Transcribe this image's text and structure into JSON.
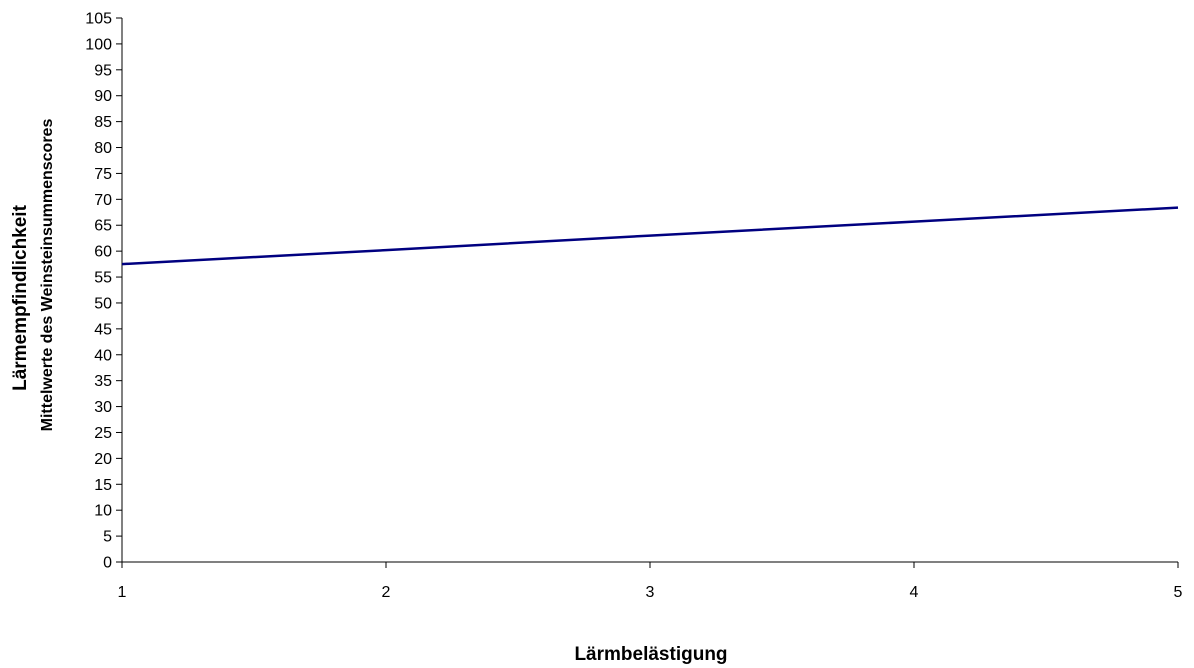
{
  "chart_data": {
    "type": "line",
    "title": "",
    "xlabel": "Lärmbelästigung",
    "ylabel": "Lärmempfindlichkeit",
    "ylabel_sub": "Mittelwerte des Weinsteinsummenscores",
    "xlim": [
      1,
      5
    ],
    "ylim": [
      0,
      105
    ],
    "x_ticks": [
      1,
      2,
      3,
      4,
      5
    ],
    "y_ticks": [
      0,
      5,
      10,
      15,
      20,
      25,
      30,
      35,
      40,
      45,
      50,
      55,
      60,
      65,
      70,
      75,
      80,
      85,
      90,
      95,
      100,
      105
    ],
    "grid": false,
    "legend": "none",
    "series": [
      {
        "x": [
          1,
          2,
          3,
          4,
          5
        ],
        "values": [
          57.5,
          60.2,
          63.0,
          65.7,
          68.4
        ],
        "color": "#000080"
      }
    ]
  }
}
